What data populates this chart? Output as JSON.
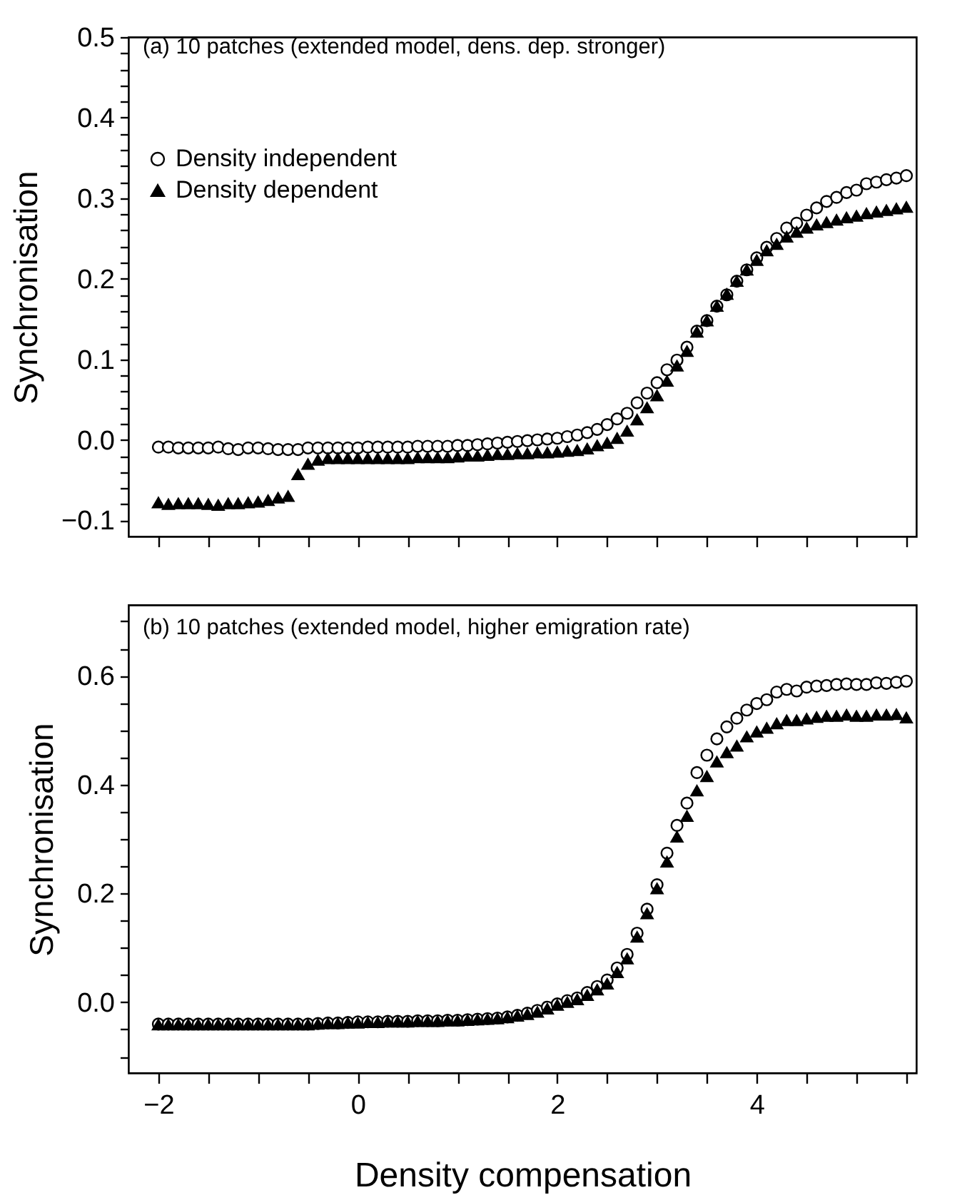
{
  "chart_data": [
    {
      "type": "scatter",
      "title": "(a) 10 patches (extended model, dens. dep. stronger)",
      "ylabel": "Synchronisation",
      "legend": "top left",
      "tick_labels": "y",
      "grid": false,
      "x": [
        -2.0,
        -1.9,
        -1.8,
        -1.7,
        -1.6,
        -1.5,
        -1.4,
        -1.3,
        -1.2,
        -1.1,
        -1.0,
        -0.9,
        -0.8,
        -0.7,
        -0.6,
        -0.5,
        -0.4,
        -0.3,
        -0.2,
        -0.1,
        0.0,
        0.1,
        0.2,
        0.3,
        0.4,
        0.5,
        0.6,
        0.7,
        0.8,
        0.9,
        1.0,
        1.1,
        1.2,
        1.3,
        1.4,
        1.5,
        1.6,
        1.7,
        1.8,
        1.9,
        2.0,
        2.1,
        2.2,
        2.3,
        2.4,
        2.5,
        2.6,
        2.7,
        2.8,
        2.9,
        3.0,
        3.1,
        3.2,
        3.3,
        3.4,
        3.5,
        3.6,
        3.7,
        3.8,
        3.9,
        4.0,
        4.1,
        4.2,
        4.3,
        4.4,
        4.5,
        4.6,
        4.7,
        4.8,
        4.9,
        5.0,
        5.1,
        5.2,
        5.3,
        5.4,
        5.5
      ],
      "xlim": [
        -2.3,
        5.6
      ],
      "xticks": [
        {
          "value": -2,
          "label": null
        },
        {
          "value": -1.5,
          "label": null
        },
        {
          "value": -1,
          "label": null
        },
        {
          "value": -0.5,
          "label": null
        },
        {
          "value": 0,
          "label": null
        },
        {
          "value": 0.5,
          "label": null
        },
        {
          "value": 1,
          "label": null
        },
        {
          "value": 1.5,
          "label": null
        },
        {
          "value": 2,
          "label": null
        },
        {
          "value": 2.5,
          "label": null
        },
        {
          "value": 3,
          "label": null
        },
        {
          "value": 3.5,
          "label": null
        },
        {
          "value": 4,
          "label": null
        },
        {
          "value": 4.5,
          "label": null
        },
        {
          "value": 5,
          "label": null
        },
        {
          "value": 5.5,
          "label": null
        }
      ],
      "ylim": [
        -0.12,
        0.5
      ],
      "yticks": [
        {
          "value": -0.1,
          "label": "−0.1"
        },
        {
          "value": -0.08,
          "label": null
        },
        {
          "value": -0.06,
          "label": null
        },
        {
          "value": -0.04,
          "label": null
        },
        {
          "value": -0.02,
          "label": null
        },
        {
          "value": 0,
          "label": "0.0"
        },
        {
          "value": 0.02,
          "label": null
        },
        {
          "value": 0.04,
          "label": null
        },
        {
          "value": 0.06,
          "label": null
        },
        {
          "value": 0.08,
          "label": null
        },
        0.1,
        {
          "value": 0.12,
          "label": null
        },
        {
          "value": 0.14,
          "label": null
        },
        {
          "value": 0.16,
          "label": null
        },
        {
          "value": 0.18,
          "label": null
        },
        0.2,
        {
          "value": 0.22,
          "label": null
        },
        {
          "value": 0.24,
          "label": null
        },
        {
          "value": 0.26,
          "label": null
        },
        {
          "value": 0.28,
          "label": null
        },
        0.3,
        {
          "value": 0.32,
          "label": null
        },
        {
          "value": 0.34,
          "label": null
        },
        {
          "value": 0.36,
          "label": null
        },
        {
          "value": 0.38,
          "label": null
        },
        0.4,
        {
          "value": 0.42,
          "label": null
        },
        {
          "value": 0.44,
          "label": null
        },
        {
          "value": 0.46,
          "label": null
        },
        {
          "value": 0.48,
          "label": null
        },
        0.5
      ],
      "series": [
        {
          "name": "Density independent",
          "color": "#000000",
          "marker": "circle",
          "values": [
            -0.009,
            -0.009,
            -0.01,
            -0.01,
            -0.01,
            -0.01,
            -0.009,
            -0.011,
            -0.012,
            -0.01,
            -0.01,
            -0.011,
            -0.012,
            -0.012,
            -0.012,
            -0.01,
            -0.01,
            -0.01,
            -0.01,
            -0.01,
            -0.01,
            -0.009,
            -0.009,
            -0.009,
            -0.009,
            -0.009,
            -0.008,
            -0.008,
            -0.008,
            -0.008,
            -0.007,
            -0.007,
            -0.006,
            -0.005,
            -0.004,
            -0.003,
            -0.002,
            -0.001,
            0.0,
            0.001,
            0.002,
            0.004,
            0.006,
            0.009,
            0.013,
            0.019,
            0.026,
            0.033,
            0.046,
            0.058,
            0.071,
            0.087,
            0.099,
            0.115,
            0.135,
            0.148,
            0.166,
            0.18,
            0.197,
            0.211,
            0.226,
            0.239,
            0.25,
            0.263,
            0.269,
            0.279,
            0.288,
            0.296,
            0.301,
            0.307,
            0.31,
            0.318,
            0.32,
            0.323,
            0.325,
            0.328
          ]
        },
        {
          "name": "Density dependent",
          "color": "#000000",
          "marker": "triangle",
          "values": [
            -0.078,
            -0.08,
            -0.079,
            -0.079,
            -0.079,
            -0.08,
            -0.081,
            -0.079,
            -0.079,
            -0.078,
            -0.077,
            -0.075,
            -0.072,
            -0.07,
            -0.043,
            -0.03,
            -0.025,
            -0.023,
            -0.023,
            -0.023,
            -0.023,
            -0.023,
            -0.023,
            -0.023,
            -0.023,
            -0.023,
            -0.022,
            -0.022,
            -0.022,
            -0.022,
            -0.021,
            -0.02,
            -0.02,
            -0.019,
            -0.018,
            -0.018,
            -0.017,
            -0.017,
            -0.016,
            -0.016,
            -0.015,
            -0.014,
            -0.013,
            -0.011,
            -0.007,
            -0.004,
            0.002,
            0.011,
            0.025,
            0.04,
            0.055,
            0.073,
            0.092,
            0.11,
            0.134,
            0.148,
            0.166,
            0.181,
            0.197,
            0.211,
            0.223,
            0.235,
            0.243,
            0.252,
            0.258,
            0.263,
            0.267,
            0.27,
            0.273,
            0.276,
            0.278,
            0.281,
            0.283,
            0.285,
            0.287,
            0.289
          ]
        }
      ]
    },
    {
      "type": "scatter",
      "title": "(b) 10 patches (extended model, higher emigration rate)",
      "xlabel": "Density compensation",
      "ylabel": "Synchronisation",
      "grid": false,
      "x": [
        -2.0,
        -1.9,
        -1.8,
        -1.7,
        -1.6,
        -1.5,
        -1.4,
        -1.3,
        -1.2,
        -1.1,
        -1.0,
        -0.9,
        -0.8,
        -0.7,
        -0.6,
        -0.5,
        -0.4,
        -0.3,
        -0.2,
        -0.1,
        0.0,
        0.1,
        0.2,
        0.3,
        0.4,
        0.5,
        0.6,
        0.7,
        0.8,
        0.9,
        1.0,
        1.1,
        1.2,
        1.3,
        1.4,
        1.5,
        1.6,
        1.7,
        1.8,
        1.9,
        2.0,
        2.1,
        2.2,
        2.3,
        2.4,
        2.5,
        2.6,
        2.7,
        2.8,
        2.9,
        3.0,
        3.1,
        3.2,
        3.3,
        3.4,
        3.5,
        3.6,
        3.7,
        3.8,
        3.9,
        4.0,
        4.1,
        4.2,
        4.3,
        4.4,
        4.5,
        4.6,
        4.7,
        4.8,
        4.9,
        5.0,
        5.1,
        5.2,
        5.3,
        5.4,
        5.5
      ],
      "xlim": [
        -2.3,
        5.6
      ],
      "xticks": [
        {
          "value": -2,
          "label": "−2"
        },
        {
          "value": -1.5,
          "label": null
        },
        {
          "value": -1,
          "label": null
        },
        {
          "value": -0.5,
          "label": null
        },
        0,
        {
          "value": 0.5,
          "label": null
        },
        {
          "value": 1,
          "label": null
        },
        {
          "value": 1.5,
          "label": null
        },
        2,
        {
          "value": 2.5,
          "label": null
        },
        {
          "value": 3,
          "label": null
        },
        {
          "value": 3.5,
          "label": null
        },
        4,
        {
          "value": 4.5,
          "label": null
        },
        {
          "value": 5,
          "label": null
        },
        {
          "value": 5.5,
          "label": null
        }
      ],
      "ylim": [
        -0.13,
        0.73
      ],
      "yticks": [
        {
          "value": -0.1,
          "label": null
        },
        {
          "value": -0.05,
          "label": null
        },
        {
          "value": 0,
          "label": "0.0"
        },
        {
          "value": 0.05,
          "label": null
        },
        {
          "value": 0.1,
          "label": null
        },
        {
          "value": 0.15,
          "label": null
        },
        0.2,
        {
          "value": 0.25,
          "label": null
        },
        {
          "value": 0.3,
          "label": null
        },
        {
          "value": 0.35,
          "label": null
        },
        0.4,
        {
          "value": 0.45,
          "label": null
        },
        {
          "value": 0.5,
          "label": null
        },
        {
          "value": 0.55,
          "label": null
        },
        0.6,
        {
          "value": 0.65,
          "label": null
        },
        {
          "value": 0.7,
          "label": null
        }
      ],
      "series": [
        {
          "color": "#000000",
          "marker": "circle",
          "values": [
            -0.04,
            -0.04,
            -0.04,
            -0.04,
            -0.04,
            -0.04,
            -0.04,
            -0.04,
            -0.04,
            -0.04,
            -0.04,
            -0.04,
            -0.04,
            -0.04,
            -0.04,
            -0.04,
            -0.039,
            -0.038,
            -0.038,
            -0.037,
            -0.036,
            -0.036,
            -0.036,
            -0.035,
            -0.035,
            -0.035,
            -0.034,
            -0.034,
            -0.034,
            -0.033,
            -0.033,
            -0.032,
            -0.031,
            -0.03,
            -0.029,
            -0.027,
            -0.024,
            -0.02,
            -0.015,
            -0.009,
            -0.003,
            0.003,
            0.008,
            0.018,
            0.029,
            0.041,
            0.063,
            0.088,
            0.127,
            0.171,
            0.216,
            0.274,
            0.325,
            0.366,
            0.422,
            0.454,
            0.484,
            0.506,
            0.522,
            0.537,
            0.549,
            0.556,
            0.57,
            0.575,
            0.572,
            0.579,
            0.581,
            0.582,
            0.584,
            0.585,
            0.584,
            0.584,
            0.587,
            0.586,
            0.588,
            0.59
          ]
        },
        {
          "color": "#000000",
          "marker": "triangle",
          "values": [
            -0.041,
            -0.041,
            -0.041,
            -0.041,
            -0.041,
            -0.041,
            -0.041,
            -0.041,
            -0.041,
            -0.041,
            -0.041,
            -0.041,
            -0.041,
            -0.041,
            -0.041,
            -0.041,
            -0.04,
            -0.039,
            -0.039,
            -0.038,
            -0.038,
            -0.037,
            -0.037,
            -0.036,
            -0.036,
            -0.036,
            -0.035,
            -0.035,
            -0.035,
            -0.034,
            -0.034,
            -0.033,
            -0.032,
            -0.031,
            -0.03,
            -0.028,
            -0.025,
            -0.022,
            -0.018,
            -0.012,
            -0.005,
            0.0,
            0.005,
            0.013,
            0.023,
            0.034,
            0.055,
            0.08,
            0.12,
            0.163,
            0.209,
            0.258,
            0.304,
            0.342,
            0.389,
            0.415,
            0.442,
            0.459,
            0.471,
            0.488,
            0.497,
            0.504,
            0.512,
            0.518,
            0.518,
            0.521,
            0.524,
            0.526,
            0.526,
            0.528,
            0.526,
            0.526,
            0.528,
            0.528,
            0.529,
            0.523
          ]
        }
      ]
    }
  ]
}
